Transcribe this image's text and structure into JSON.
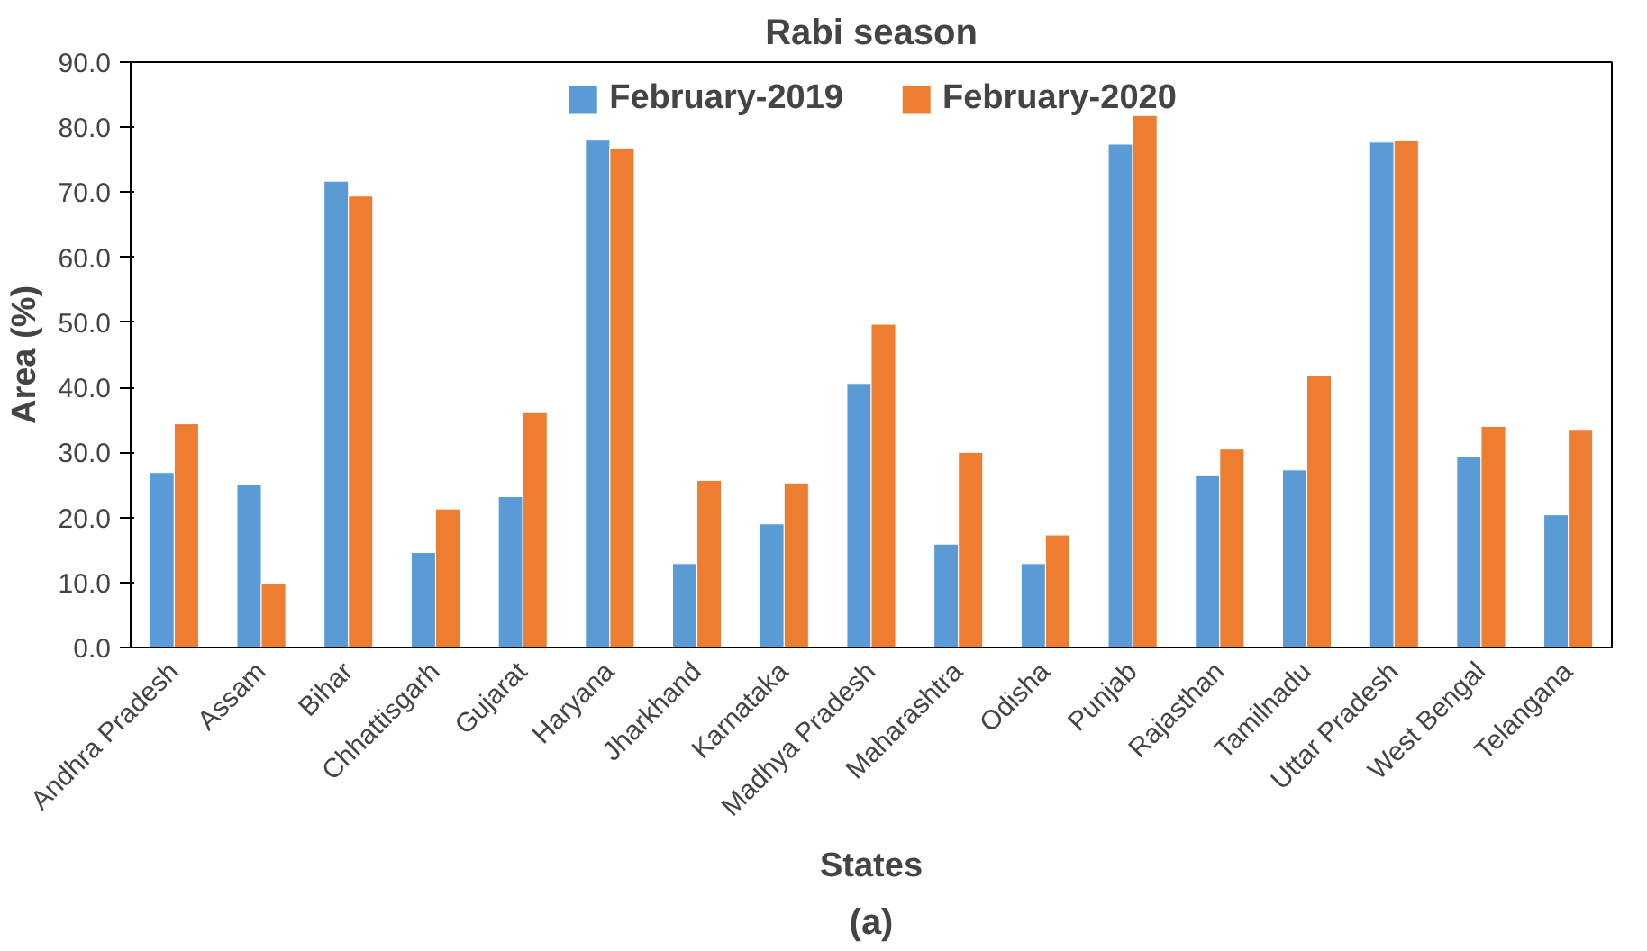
{
  "chart_data": {
    "type": "bar",
    "title": "Rabi season",
    "xlabel": "States",
    "ylabel": "Area (%)",
    "annotations": [
      "(a)"
    ],
    "categories": [
      "Andhra Pradesh",
      "Assam",
      "Bihar",
      "Chhattisgarh",
      "Gujarat",
      "Haryana",
      "Jharkhand",
      "Karnataka",
      "Madhya Pradesh",
      "Maharashtra",
      "Odisha",
      "Punjab",
      "Rajasthan",
      "Tamilnadu",
      "Uttar Pradesh",
      "West Bengal",
      "Telangana"
    ],
    "series": [
      {
        "name": "February-2019",
        "color": "#5b9bd5",
        "values": [
          26.9,
          25.1,
          71.7,
          14.6,
          23.2,
          78.0,
          12.9,
          19.0,
          40.6,
          15.9,
          12.9,
          77.4,
          26.4,
          27.3,
          77.7,
          29.3,
          20.4
        ]
      },
      {
        "name": "February-2020",
        "color": "#ed7d31",
        "values": [
          34.4,
          9.9,
          69.4,
          21.3,
          36.1,
          76.8,
          25.7,
          25.3,
          49.7,
          30.0,
          17.3,
          81.8,
          30.5,
          41.8,
          77.9,
          34.0,
          33.4
        ]
      }
    ],
    "ylim": [
      0,
      90
    ],
    "yticks": [
      {
        "value": 0,
        "label": "0.0"
      },
      {
        "value": 10,
        "label": "10.0"
      },
      {
        "value": 20,
        "label": "20.0"
      },
      {
        "value": 30,
        "label": "30.0"
      },
      {
        "value": 40,
        "label": "40.0"
      },
      {
        "value": 50,
        "label": "50.0"
      },
      {
        "value": 60,
        "label": "60.0"
      },
      {
        "value": 70,
        "label": "70.0"
      },
      {
        "value": 80,
        "label": "80.0"
      },
      {
        "value": 90,
        "label": "90.0"
      }
    ],
    "grid": false,
    "legend": "top"
  }
}
